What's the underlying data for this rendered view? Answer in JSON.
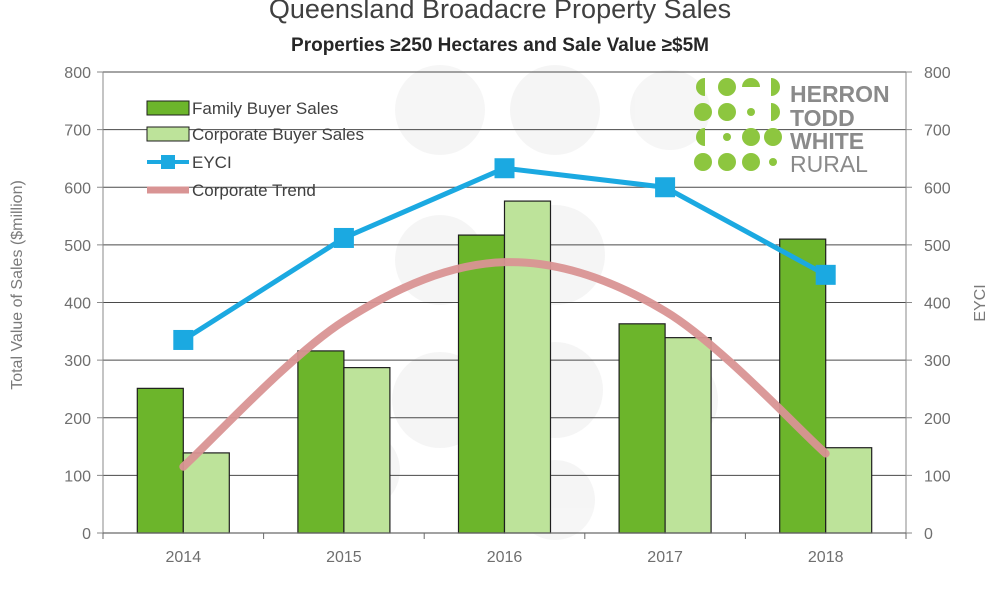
{
  "chart_data": {
    "type": "bar",
    "title": "Queensland Broadacre Property Sales",
    "subtitle": "Properties ≥250 Hectares and Sale Value ≥$5M",
    "categories": [
      "2014",
      "2015",
      "2016",
      "2017",
      "2018"
    ],
    "series": [
      {
        "name": "Family Buyer Sales",
        "type": "bar",
        "axis": "left",
        "color": "#6cb52b",
        "values": [
          251,
          316,
          517,
          363,
          510
        ]
      },
      {
        "name": "Corporate Buyer Sales",
        "type": "bar",
        "axis": "left",
        "color": "#bde39a",
        "values": [
          139,
          287,
          576,
          339,
          148
        ]
      },
      {
        "name": "EYCI",
        "type": "line",
        "axis": "right",
        "color": "#1ba9e1",
        "marker": "square",
        "values": [
          335,
          512,
          633,
          600,
          448
        ]
      },
      {
        "name": "Corporate Trend",
        "type": "line",
        "axis": "left",
        "color": "#d99494",
        "smooth": true,
        "values": [
          115,
          368,
          470,
          385,
          138
        ]
      }
    ],
    "ylabel": "Total Value of Sales ($million)",
    "y2label": "EYCI",
    "ylim": [
      0,
      800
    ],
    "y2lim": [
      0,
      800
    ],
    "yticks": [
      "0",
      "100",
      "200",
      "300",
      "400",
      "500",
      "600",
      "700",
      "800"
    ],
    "y2ticks": [
      "0",
      "100",
      "200",
      "300",
      "400",
      "500",
      "600",
      "700",
      "800"
    ],
    "grid": true,
    "legend_position": "top-left"
  },
  "logo": {
    "line1": "HERRON",
    "line2": "TODD",
    "line3": "WHITE",
    "line4": "RURAL",
    "color": "#8dc63f"
  }
}
